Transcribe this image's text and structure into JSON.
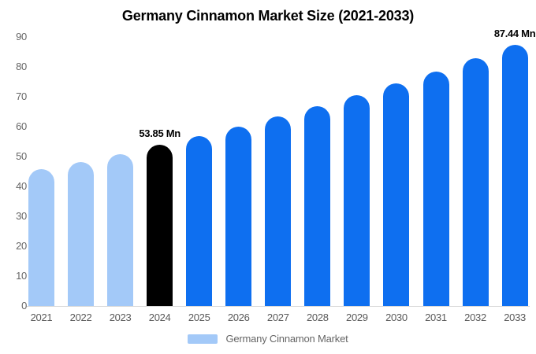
{
  "chart_data": {
    "type": "bar",
    "title": "Germany Cinnamon Market Size (2021-2033)",
    "categories": [
      "2021",
      "2022",
      "2023",
      "2024",
      "2025",
      "2026",
      "2027",
      "2028",
      "2029",
      "2030",
      "2031",
      "2032",
      "2033"
    ],
    "values": [
      45.9,
      48.1,
      50.9,
      53.85,
      56.8,
      60.0,
      63.3,
      66.8,
      70.5,
      74.4,
      78.5,
      82.8,
      87.44
    ],
    "unit": "Mn",
    "xlabel": "",
    "ylabel": "",
    "ylim": [
      0,
      90
    ],
    "y_ticks": [
      0,
      10,
      20,
      30,
      40,
      50,
      60,
      70,
      80,
      90
    ],
    "grid": false,
    "legend_position": "bottom",
    "bar_colors": [
      "#a3c9f8",
      "#a3c9f8",
      "#a3c9f8",
      "#000000",
      "#0e6ff0",
      "#0e6ff0",
      "#0e6ff0",
      "#0e6ff0",
      "#0e6ff0",
      "#0e6ff0",
      "#0e6ff0",
      "#0e6ff0",
      "#0e6ff0"
    ],
    "annotations": [
      {
        "category": "2024",
        "text": "53.85 Mn"
      },
      {
        "category": "2033",
        "text": "87.44 Mn"
      }
    ],
    "legend": {
      "label": "Germany Cinnamon Market",
      "swatch_color": "#a3c9f8"
    },
    "colors": {
      "historical_bar": "#a3c9f8",
      "base_year_bar": "#000000",
      "forecast_bar": "#0e6ff0",
      "axis_text": "#666666",
      "title_text": "#000000",
      "baseline": "#d9d9d9",
      "value_label_text": "#000000"
    }
  }
}
